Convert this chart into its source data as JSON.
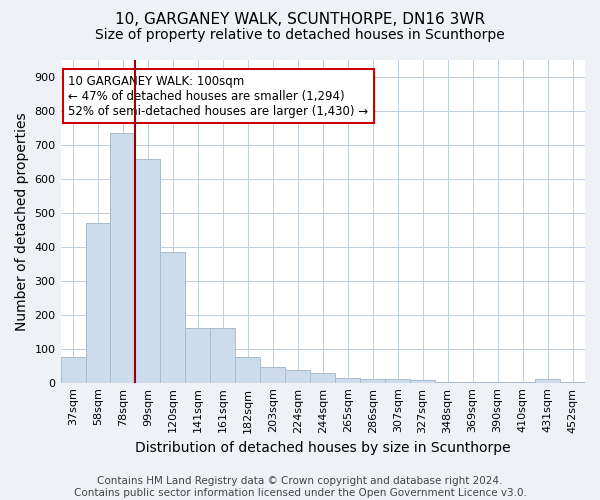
{
  "title": "10, GARGANEY WALK, SCUNTHORPE, DN16 3WR",
  "subtitle": "Size of property relative to detached houses in Scunthorpe",
  "xlabel": "Distribution of detached houses by size in Scunthorpe",
  "ylabel": "Number of detached properties",
  "footer_line1": "Contains HM Land Registry data © Crown copyright and database right 2024.",
  "footer_line2": "Contains public sector information licensed under the Open Government Licence v3.0.",
  "categories": [
    "37sqm",
    "58sqm",
    "78sqm",
    "99sqm",
    "120sqm",
    "141sqm",
    "161sqm",
    "182sqm",
    "203sqm",
    "224sqm",
    "244sqm",
    "265sqm",
    "286sqm",
    "307sqm",
    "327sqm",
    "348sqm",
    "369sqm",
    "390sqm",
    "410sqm",
    "431sqm",
    "452sqm"
  ],
  "values": [
    75,
    470,
    735,
    660,
    385,
    160,
    160,
    75,
    45,
    38,
    28,
    13,
    11,
    11,
    7,
    2,
    2,
    2,
    2,
    10,
    2
  ],
  "bar_color": "#ccdcec",
  "bar_edge_color": "#aabbcc",
  "vline_x_index": 3,
  "vline_color": "#990000",
  "annotation_line1": "10 GARGANEY WALK: 100sqm",
  "annotation_line2": "← 47% of detached houses are smaller (1,294)",
  "annotation_line3": "52% of semi-detached houses are larger (1,430) →",
  "annotation_box_color": "#ffffff",
  "annotation_box_edge": "#cc0000",
  "ylim": [
    0,
    950
  ],
  "yticks": [
    0,
    100,
    200,
    300,
    400,
    500,
    600,
    700,
    800,
    900
  ],
  "bg_color": "#eef2f7",
  "plot_bg_color": "#ffffff",
  "grid_color": "#c0cfe0",
  "title_fontsize": 11,
  "subtitle_fontsize": 10,
  "axis_label_fontsize": 10,
  "tick_fontsize": 8,
  "annotation_fontsize": 8.5,
  "footer_fontsize": 7.5
}
